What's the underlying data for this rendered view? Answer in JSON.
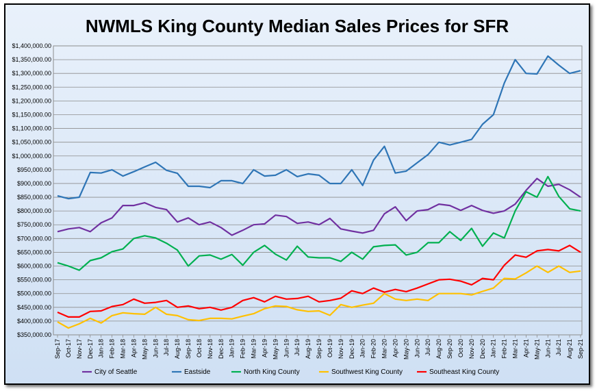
{
  "chart_data": {
    "type": "line",
    "title": "NWMLS King County Median Sales Prices for SFR",
    "xlabel": "",
    "ylabel": "",
    "ylim": [
      350000,
      1400000
    ],
    "y_ticks": [
      "$350,000.00",
      "$400,000.00",
      "$450,000.00",
      "$500,000.00",
      "$550,000.00",
      "$600,000.00",
      "$650,000.00",
      "$700,000.00",
      "$750,000.00",
      "$800,000.00",
      "$850,000.00",
      "$900,000.00",
      "$950,000.00",
      "$1,000,000.00",
      "$1,050,000.00",
      "$1,100,000.00",
      "$1,150,000.00",
      "$1,200,000.00",
      "$1,250,000.00",
      "$1,300,000.00",
      "$1,350,000.00",
      "$1,400,000.00"
    ],
    "grid": true,
    "legend_position": "bottom",
    "categories": [
      "Sep-17",
      "Oct-17",
      "Nov-17",
      "Dec-17",
      "Jan-18",
      "Feb-18",
      "Mar-18",
      "Apr-18",
      "May-18",
      "Jun-18",
      "Jul-18",
      "Aug-18",
      "Sep-18",
      "Oct-18",
      "Nov-18",
      "Dec-18",
      "Jan-19",
      "Feb-19",
      "Mar-19",
      "Apr-19",
      "May-19",
      "Jun-19",
      "Jul-19",
      "Aug-19",
      "Sep-19",
      "Oct-19",
      "Nov-19",
      "Dec-19",
      "Jan-20",
      "Feb-20",
      "Mar-20",
      "Apr-20",
      "May-20",
      "Jun-20",
      "Jul-20",
      "Aug-20",
      "Sep-20",
      "Oct-20",
      "Nov-20",
      "Dec-20",
      "Jan-21",
      "Feb-21",
      "Mar-21",
      "Apr-21",
      "May-21",
      "Jun-21",
      "Jul-21",
      "Aug-21",
      "Sep-21"
    ],
    "series": [
      {
        "name": "City of Seattle",
        "color": "#7030a0",
        "values": [
          725000,
          735000,
          740000,
          725000,
          757000,
          775000,
          820000,
          820000,
          830000,
          813000,
          805000,
          760000,
          775000,
          750000,
          760000,
          740000,
          712000,
          730000,
          750000,
          753000,
          785000,
          780000,
          755000,
          760000,
          750000,
          773000,
          735000,
          727000,
          720000,
          730000,
          790000,
          815000,
          765000,
          800000,
          805000,
          825000,
          820000,
          802000,
          820000,
          802000,
          792000,
          800000,
          825000,
          875000,
          918000,
          890000,
          897000,
          877000,
          850000
        ]
      },
      {
        "name": "Eastside",
        "color": "#2e75b6",
        "values": [
          855000,
          845000,
          850000,
          940000,
          938000,
          950000,
          927000,
          943000,
          960000,
          977000,
          948000,
          937000,
          890000,
          890000,
          885000,
          910000,
          910000,
          900000,
          950000,
          927000,
          930000,
          950000,
          925000,
          935000,
          930000,
          900000,
          900000,
          950000,
          893000,
          985000,
          1035000,
          938000,
          945000,
          975000,
          1005000,
          1050000,
          1040000,
          1050000,
          1060000,
          1115000,
          1150000,
          1265000,
          1350000,
          1300000,
          1298000,
          1363000,
          1330000,
          1300000,
          1310000
        ]
      },
      {
        "name": "North King County",
        "color": "#00b050",
        "values": [
          612000,
          600000,
          585000,
          620000,
          630000,
          652000,
          662000,
          700000,
          710000,
          702000,
          683000,
          658000,
          600000,
          637000,
          640000,
          625000,
          642000,
          603000,
          650000,
          675000,
          643000,
          622000,
          672000,
          633000,
          630000,
          630000,
          617000,
          650000,
          625000,
          670000,
          675000,
          677000,
          640000,
          650000,
          685000,
          685000,
          725000,
          693000,
          737000,
          672000,
          720000,
          702000,
          800000,
          870000,
          850000,
          925000,
          853000,
          808000,
          800000
        ]
      },
      {
        "name": "Southwest King County",
        "color": "#ffc000",
        "values": [
          397000,
          375000,
          390000,
          410000,
          393000,
          420000,
          430000,
          427000,
          425000,
          450000,
          425000,
          420000,
          405000,
          402000,
          410000,
          410000,
          408000,
          418000,
          427000,
          445000,
          455000,
          453000,
          441000,
          435000,
          437000,
          421000,
          460000,
          450000,
          458000,
          465000,
          500000,
          480000,
          475000,
          480000,
          475000,
          500000,
          500000,
          500000,
          495000,
          508000,
          520000,
          555000,
          553000,
          575000,
          600000,
          577000,
          600000,
          577000,
          582000
        ]
      },
      {
        "name": "Southeast King County",
        "color": "#ff0000",
        "values": [
          432000,
          415000,
          415000,
          435000,
          437000,
          453000,
          460000,
          480000,
          465000,
          468000,
          475000,
          450000,
          455000,
          445000,
          450000,
          440000,
          450000,
          475000,
          485000,
          470000,
          490000,
          480000,
          482000,
          490000,
          470000,
          475000,
          483000,
          510000,
          500000,
          520000,
          505000,
          515000,
          507000,
          520000,
          535000,
          550000,
          552000,
          545000,
          532000,
          555000,
          550000,
          603000,
          640000,
          632000,
          655000,
          660000,
          655000,
          675000,
          650000
        ]
      }
    ]
  }
}
